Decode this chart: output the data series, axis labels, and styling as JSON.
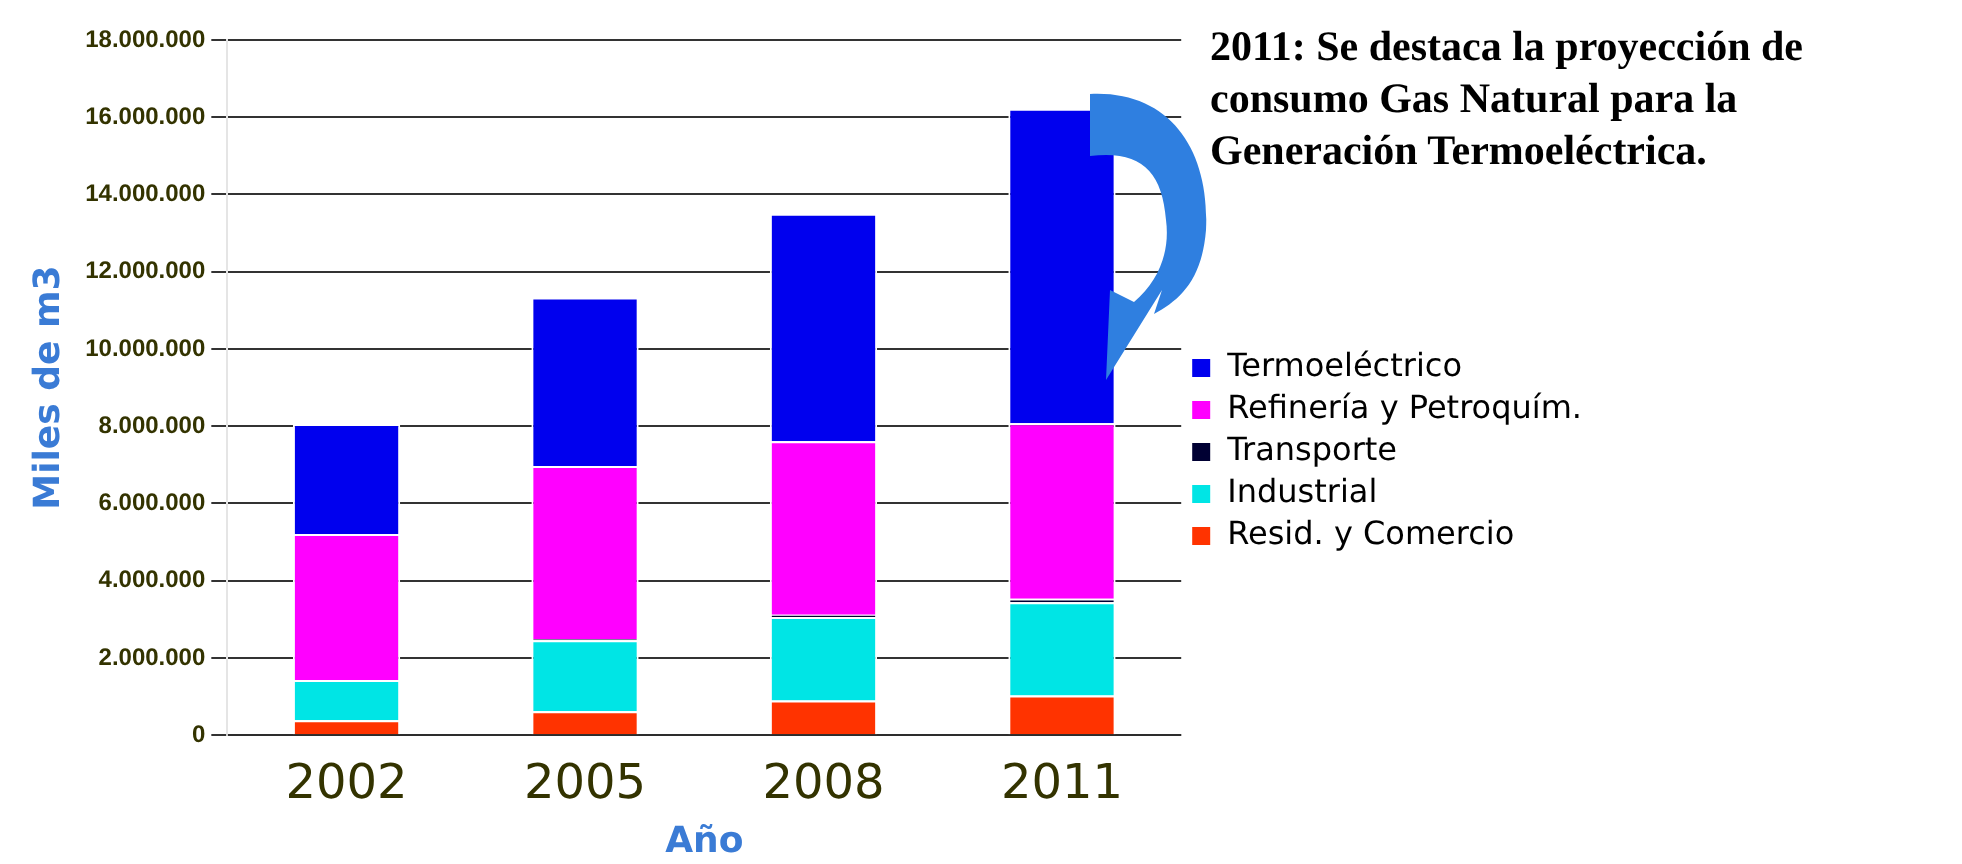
{
  "chart_data": {
    "type": "bar",
    "stacked": true,
    "xlabel": "Año",
    "ylabel": "Miles de m3",
    "categories": [
      "2002",
      "2005",
      "2008",
      "2011"
    ],
    "series": [
      {
        "name": "Resid. y Comercio",
        "color": "#ff3300",
        "values": [
          390000,
          620000,
          900000,
          1030000
        ]
      },
      {
        "name": "Industrial",
        "color": "#00e5e5",
        "values": [
          1040000,
          1840000,
          2160000,
          2410000
        ]
      },
      {
        "name": "Transporte",
        "color": "#000033",
        "values": [
          null,
          30000,
          60000,
          90000
        ]
      },
      {
        "name": "Refinería y Petroquím.",
        "color": "#ff00ff",
        "values": [
          3780000,
          4480000,
          4490000,
          4550000
        ]
      },
      {
        "name": "Termoeléctrico",
        "color": "#0000ee",
        "values": [
          2850000,
          4360000,
          5890000,
          8140000
        ]
      }
    ],
    "ylim": [
      0,
      18000000
    ],
    "yticks": [
      0,
      {
        "value": 2000000,
        "label": "2.000.000"
      },
      {
        "value": 4000000,
        "label": "4.000.000"
      },
      {
        "value": 6000000,
        "label": "6.000.000"
      },
      {
        "value": 8000000,
        "label": "8.000.000"
      },
      {
        "value": 10000000,
        "label": "10.000.000"
      },
      {
        "value": 12000000,
        "label": "12.000.000"
      },
      {
        "value": 14000000,
        "label": "14.000.000"
      },
      {
        "value": 16000000,
        "label": "16.000.000"
      },
      {
        "value": 18000000,
        "label": "18.000.000"
      }
    ],
    "grid": "y",
    "legend": "right",
    "annotations": [
      "2011: Se destaca la proyección de consumo Gas Natural para la Generación Termoeléctrica."
    ]
  }
}
